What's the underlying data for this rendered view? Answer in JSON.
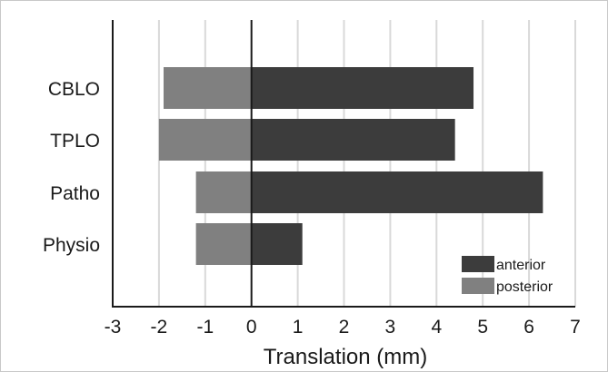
{
  "chart_data": {
    "type": "bar",
    "orientation": "horizontal",
    "stacked": "diverging",
    "categories": [
      "CBLO",
      "TPLO",
      "Patho",
      "Physio"
    ],
    "series": [
      {
        "name": "anterior",
        "values": [
          4.8,
          4.4,
          6.3,
          1.1
        ],
        "color": "#3c3c3c"
      },
      {
        "name": "posterior",
        "values": [
          -1.9,
          -2.0,
          -1.2,
          -1.2
        ],
        "color": "#808080"
      }
    ],
    "title": "",
    "xlabel": "Translation (mm)",
    "ylabel": "",
    "xlim": [
      -3,
      7
    ],
    "xticks": [
      "-3",
      "-2",
      "-1",
      "0",
      "1",
      "2",
      "3",
      "4",
      "5",
      "6",
      "7"
    ],
    "grid": "vertical",
    "legend_position": "bottom-right"
  }
}
